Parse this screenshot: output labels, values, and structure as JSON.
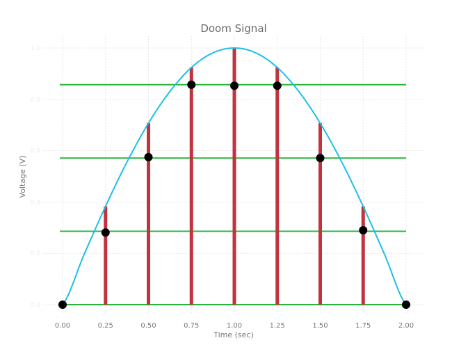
{
  "chart_data": {
    "type": "line",
    "title": "Doom Signal",
    "xlabel": "Time (sec)",
    "ylabel": "Voltage (V)",
    "xlim": [
      0,
      2
    ],
    "ylim": [
      0,
      1
    ],
    "x_ticks": [
      "0.00",
      "0.25",
      "0.50",
      "0.75",
      "1.00",
      "1.25",
      "1.50",
      "1.75",
      "2.00"
    ],
    "y_ticks": [
      "0.0",
      "0.2",
      "0.4",
      "0.6",
      "0.8",
      "1.0"
    ],
    "grid": true,
    "legend": "none",
    "colors": {
      "curve": "#1ebfe6",
      "stems": "#c0343f",
      "levels": "#2ab53c",
      "markers": "#000000"
    },
    "series": [
      {
        "kind": "continuous_signal",
        "x": [
          0,
          0.125,
          0.25,
          0.375,
          0.5,
          0.625,
          0.75,
          0.875,
          1.0,
          1.125,
          1.25,
          1.375,
          1.5,
          1.625,
          1.75,
          1.875,
          2.0
        ],
        "values": [
          0,
          0.195,
          0.383,
          0.556,
          0.707,
          0.831,
          0.924,
          0.981,
          1.0,
          0.981,
          0.924,
          0.831,
          0.707,
          0.556,
          0.383,
          0.195,
          0
        ]
      },
      {
        "kind": "samples",
        "x": [
          0.25,
          0.5,
          0.75,
          1.0,
          1.25,
          1.5,
          1.75
        ],
        "values": [
          0.383,
          0.707,
          0.924,
          1.0,
          0.924,
          0.707,
          0.383
        ]
      },
      {
        "kind": "quantization_levels",
        "values": [
          0,
          0.286,
          0.571,
          0.857
        ]
      },
      {
        "kind": "quantized_points",
        "x": [
          0,
          0.25,
          0.5,
          0.75,
          1.0,
          1.25,
          1.5,
          1.75,
          2.0
        ],
        "values": [
          0,
          0.281,
          0.575,
          0.857,
          0.853,
          0.853,
          0.571,
          0.29,
          0
        ]
      }
    ]
  }
}
